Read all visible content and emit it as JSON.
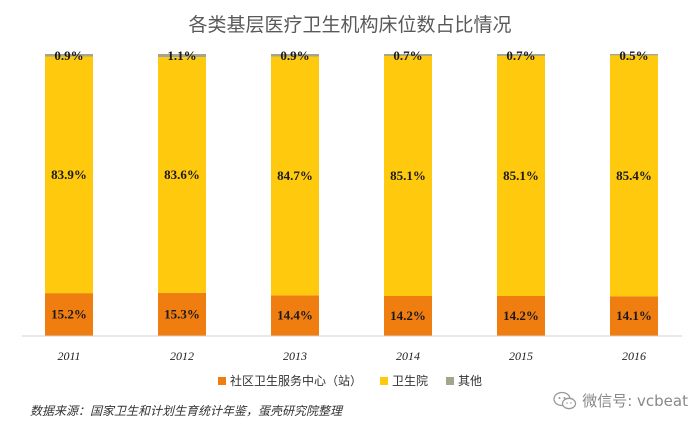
{
  "chart_data": {
    "type": "bar",
    "stacked": true,
    "normalized": true,
    "title": "各类基层医疗卫生机构床位数占比情况",
    "categories": [
      "2011",
      "2012",
      "2013",
      "2014",
      "2015",
      "2016"
    ],
    "series": [
      {
        "name": "社区卫生服务中心（站）",
        "color": "#F07D0F",
        "values": [
          15.2,
          15.3,
          14.4,
          14.2,
          14.2,
          14.1
        ],
        "labels": [
          "15.2%",
          "15.3%",
          "14.4%",
          "14.2%",
          "14.2%",
          "14.1%"
        ]
      },
      {
        "name": "卫生院",
        "color": "#FFC90E",
        "values": [
          83.9,
          83.6,
          84.7,
          85.1,
          85.1,
          85.4
        ],
        "labels": [
          "83.9%",
          "83.6%",
          "84.7%",
          "85.1%",
          "85.1%",
          "85.4%"
        ]
      },
      {
        "name": "其他",
        "color": "#A5A58C",
        "values": [
          0.9,
          1.1,
          0.9,
          0.7,
          0.7,
          0.5
        ],
        "labels": [
          "0.9%",
          "1.1%",
          "0.9%",
          "0.7%",
          "0.7%",
          "0.5%"
        ]
      }
    ],
    "ylim": [
      0,
      100
    ],
    "grid": false,
    "legend_position": "bottom"
  },
  "source_note": "数据来源：国家卫生和计划生育统计年鉴，蛋壳研究院整理",
  "watermark": {
    "icon": "wechat-icon",
    "text": "微信号: vcbeat"
  }
}
